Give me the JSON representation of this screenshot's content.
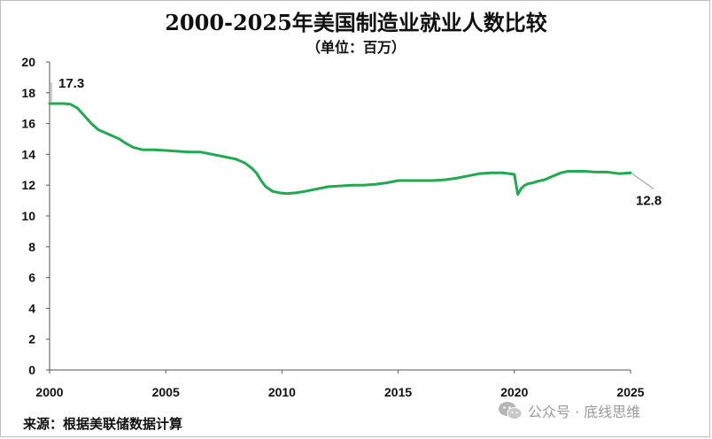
{
  "title": "2000-2025年美国制造业就业人数比较",
  "subtitle": "（单位：百万）",
  "source": "来源：根据美联储数据计算",
  "watermark": "公众号 · 底线思维",
  "colors": {
    "line": "#1faa4f",
    "axis": "#555555",
    "callout": "#999999"
  },
  "chart_data": {
    "type": "line",
    "title": "2000-2025年美国制造业就业人数比较",
    "ylabel": "",
    "xlabel": "",
    "xlim": [
      2000,
      2025
    ],
    "ylim": [
      0,
      20
    ],
    "x_ticks": [
      "2000",
      "2005",
      "2010",
      "2015",
      "2020",
      "2025"
    ],
    "y_ticks": [
      "0",
      "2",
      "4",
      "6",
      "8",
      "10",
      "12",
      "14",
      "16",
      "18",
      "20"
    ],
    "grid": false,
    "legend": "none",
    "annotations": [
      {
        "text": "17.3",
        "x": 2000.0,
        "y": 17.3
      },
      {
        "text": "12.8",
        "x": 2025.0,
        "y": 12.8
      }
    ],
    "series": [
      {
        "x": [
          2000.0,
          2000.3,
          2000.6,
          2000.9,
          2001.2,
          2001.5,
          2001.8,
          2002.1,
          2002.4,
          2002.7,
          2003.0,
          2003.3,
          2003.6,
          2004.0,
          2004.5,
          2005.0,
          2005.5,
          2006.0,
          2006.5,
          2007.0,
          2007.5,
          2008.0,
          2008.4,
          2008.7,
          2008.9,
          2009.1,
          2009.3,
          2009.6,
          2009.9,
          2010.2,
          2010.6,
          2011.0,
          2011.5,
          2012.0,
          2012.5,
          2013.0,
          2013.5,
          2014.0,
          2014.5,
          2015.0,
          2015.5,
          2016.0,
          2016.5,
          2017.0,
          2017.5,
          2018.0,
          2018.5,
          2019.0,
          2019.5,
          2020.0,
          2020.15,
          2020.3,
          2020.45,
          2020.6,
          2020.8,
          2021.0,
          2021.3,
          2021.6,
          2022.0,
          2022.3,
          2022.6,
          2023.0,
          2023.5,
          2024.0,
          2024.5,
          2025.0
        ],
        "values": [
          17.3,
          17.3,
          17.3,
          17.25,
          17.0,
          16.5,
          16.0,
          15.6,
          15.4,
          15.2,
          15.0,
          14.7,
          14.45,
          14.3,
          14.3,
          14.25,
          14.2,
          14.15,
          14.15,
          14.0,
          13.85,
          13.7,
          13.45,
          13.1,
          12.8,
          12.3,
          11.9,
          11.6,
          11.5,
          11.45,
          11.5,
          11.6,
          11.75,
          11.9,
          11.95,
          12.0,
          12.0,
          12.05,
          12.15,
          12.3,
          12.3,
          12.3,
          12.3,
          12.35,
          12.45,
          12.6,
          12.75,
          12.8,
          12.8,
          12.7,
          11.4,
          11.8,
          12.0,
          12.1,
          12.15,
          12.25,
          12.35,
          12.55,
          12.8,
          12.9,
          12.9,
          12.9,
          12.85,
          12.85,
          12.75,
          12.8
        ]
      }
    ]
  }
}
